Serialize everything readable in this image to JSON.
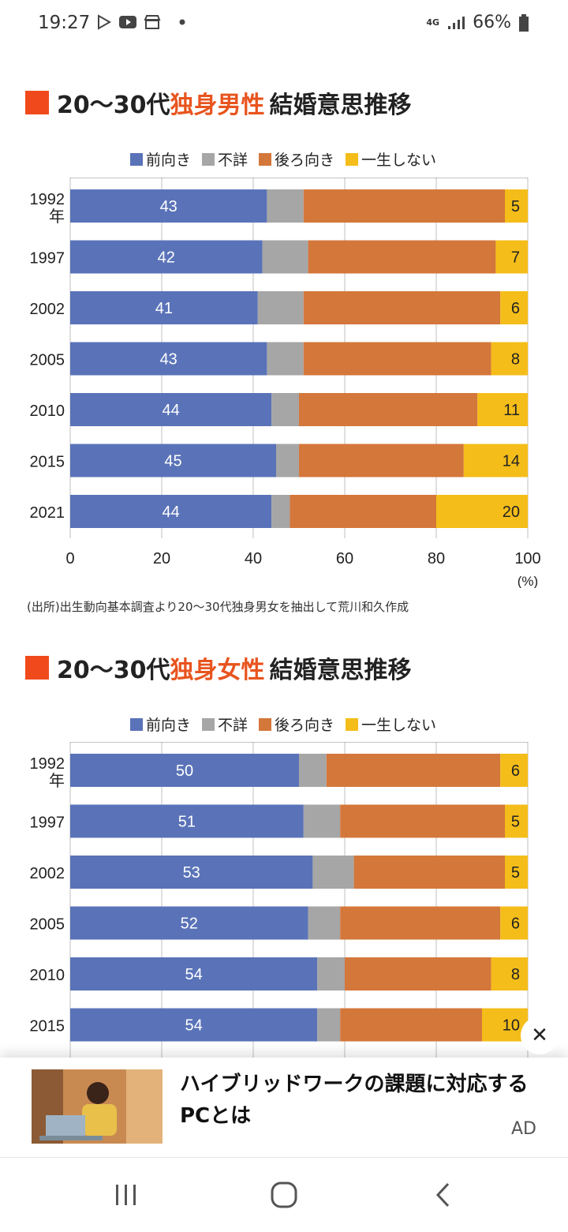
{
  "status_bar": {
    "time": "19:27",
    "signal": "4G",
    "battery": "66%"
  },
  "chart_data": [
    {
      "type": "bar",
      "orientation": "horizontal",
      "stacked": true,
      "title_prefix": "20〜30代",
      "title_highlight": "独身男性",
      "title_suffix": "結婚意思推移",
      "categories": [
        "1992\n年",
        "1997",
        "2002",
        "2005",
        "2010",
        "2015",
        "2021"
      ],
      "series": [
        {
          "name": "前向き",
          "color": "#5a73b8",
          "values": [
            43,
            42,
            41,
            43,
            44,
            45,
            44
          ]
        },
        {
          "name": "不詳",
          "color": "#a6a6a6",
          "values": [
            8,
            10,
            10,
            8,
            6,
            5,
            4
          ]
        },
        {
          "name": "後ろ向き",
          "color": "#d4773a",
          "values": [
            44,
            41,
            43,
            41,
            39,
            36,
            32
          ]
        },
        {
          "name": "一生しない",
          "color": "#f4bd19",
          "values": [
            5,
            7,
            6,
            8,
            11,
            14,
            20
          ]
        }
      ],
      "data_labels": {
        "前向き": [
          "43",
          "42",
          "41",
          "43",
          "44",
          "45",
          "44"
        ],
        "一生しない": [
          "5",
          "7",
          "6",
          "8",
          "11",
          "14",
          "20"
        ]
      },
      "xlim": [
        0,
        100
      ],
      "xticks": [
        "0",
        "20",
        "40",
        "60",
        "80",
        "100"
      ],
      "xunit": "(%)",
      "grid": true
    },
    {
      "type": "bar",
      "orientation": "horizontal",
      "stacked": true,
      "title_prefix": "20〜30代",
      "title_highlight": "独身女性",
      "title_suffix": "結婚意思推移",
      "categories": [
        "1992\n年",
        "1997",
        "2002",
        "2005",
        "2010",
        "2015"
      ],
      "series": [
        {
          "name": "前向き",
          "color": "#5a73b8",
          "values": [
            50,
            51,
            53,
            52,
            54,
            54
          ]
        },
        {
          "name": "不詳",
          "color": "#a6a6a6",
          "values": [
            6,
            8,
            9,
            7,
            6,
            5
          ]
        },
        {
          "name": "後ろ向き",
          "color": "#d4773a",
          "values": [
            38,
            36,
            33,
            35,
            32,
            31
          ]
        },
        {
          "name": "一生しない",
          "color": "#f4bd19",
          "values": [
            6,
            5,
            5,
            6,
            8,
            10
          ]
        }
      ],
      "data_labels": {
        "前向き": [
          "50",
          "51",
          "53",
          "52",
          "54",
          "54"
        ],
        "一生しない": [
          "6",
          "5",
          "5",
          "6",
          "8",
          "10"
        ]
      },
      "xlim": [
        0,
        100
      ],
      "grid": true
    }
  ],
  "source_note": "(出所)出生動向基本調査より20〜30代独身男女を抽出して荒川和久作成",
  "ad": {
    "headline": "ハイブリッドワークの課題に対応するPCとは",
    "label": "AD",
    "close": "✕"
  },
  "nav": {
    "recents": "|||",
    "home": "○",
    "back": "<"
  }
}
